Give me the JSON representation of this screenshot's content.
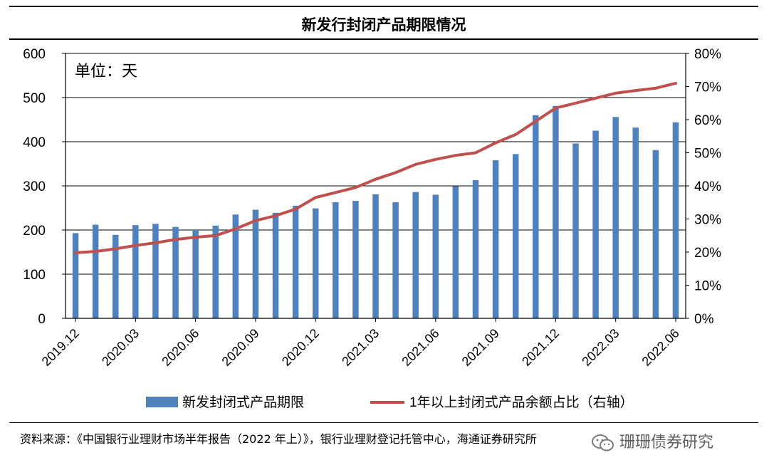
{
  "title": "新发行封闭产品期限情况",
  "source": "资料来源：《中国银行业理财市场半年报告（2022 年上）》，银行业理财登记托管中心，海通证券研究所",
  "watermark": "珊珊债券研究",
  "chart_data": {
    "type": "bar+line",
    "unit_label": "单位：天",
    "x_tick_labels": [
      "2019.12",
      "2020.03",
      "2020.06",
      "2020.09",
      "2020.12",
      "2021.03",
      "2021.06",
      "2021.09",
      "2021.12",
      "2022.03",
      "2022.06"
    ],
    "left_axis": {
      "ylim": [
        0,
        600
      ],
      "ticks": [
        0,
        100,
        200,
        300,
        400,
        500,
        600
      ]
    },
    "right_axis": {
      "ylim": [
        0,
        80
      ],
      "ticks": [
        "0%",
        "10%",
        "20%",
        "30%",
        "40%",
        "50%",
        "60%",
        "70%",
        "80%"
      ]
    },
    "bar_series": {
      "name": "新发封闭式产品期限",
      "color": "#4f81bd",
      "values": [
        193,
        212,
        189,
        211,
        214,
        207,
        200,
        210,
        235,
        246,
        239,
        255,
        249,
        263,
        266,
        281,
        263,
        286,
        280,
        299,
        313,
        358,
        372,
        460,
        481,
        396,
        425,
        456,
        432,
        381,
        444
      ]
    },
    "line_series": {
      "name": "1年以上封闭式产品余额占比（右轴）",
      "color": "#c0504d",
      "values": [
        19.8,
        20.2,
        21.0,
        22.0,
        22.8,
        23.8,
        24.5,
        25.0,
        27.0,
        29.5,
        31.0,
        33.0,
        36.5,
        38.0,
        39.5,
        42.0,
        44.0,
        46.5,
        48.0,
        49.2,
        50.0,
        53.0,
        55.5,
        59.5,
        63.5,
        65.0,
        66.5,
        68.0,
        68.8,
        69.5,
        71.0
      ]
    },
    "grid": "horizontal"
  }
}
